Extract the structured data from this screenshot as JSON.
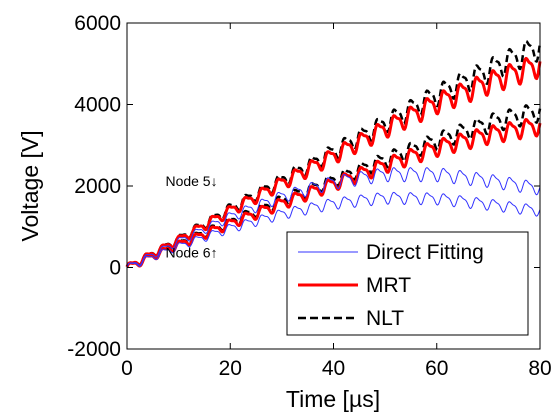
{
  "chart_data": {
    "type": "line",
    "title": "",
    "xlabel": "Time [µs]",
    "ylabel": "Voltage [V]",
    "xlim": [
      0,
      80
    ],
    "ylim": [
      -2000,
      6000
    ],
    "xticks": [
      0,
      20,
      40,
      60,
      80
    ],
    "yticks": [
      -2000,
      0,
      2000,
      4000,
      6000
    ],
    "xtick_labels": [
      "0",
      "20",
      "40",
      "60",
      "80"
    ],
    "ytick_labels": [
      "-2000",
      "0",
      "2000",
      "4000",
      "6000"
    ],
    "grid": false,
    "legend_position": "bottom-right",
    "legend": [
      {
        "label": "Direct Fitting",
        "color": "#3333ff",
        "style": "solid"
      },
      {
        "label": "MRT",
        "color": "#ff0000",
        "style": "solid"
      },
      {
        "label": "NLT",
        "color": "#000000",
        "style": "dashed"
      }
    ],
    "annotations": [
      {
        "text": "Node 5↓",
        "x": 12.5,
        "y": 2000
      },
      {
        "text": "Node 6↑",
        "x": 12.5,
        "y": 250
      }
    ],
    "series": [
      {
        "legend": "NLT",
        "node": "5",
        "color": "#000000",
        "style": "dashed",
        "width": 2.5,
        "x": [
          0,
          10,
          20,
          30,
          40,
          50,
          60,
          70,
          80
        ],
        "y": [
          0,
          700,
          1450,
          2150,
          2850,
          3550,
          4250,
          4850,
          5450
        ]
      },
      {
        "legend": "MRT",
        "node": "5",
        "color": "#ff0000",
        "style": "solid",
        "width": 3,
        "x": [
          0,
          10,
          20,
          30,
          40,
          50,
          60,
          70,
          80
        ],
        "y": [
          0,
          680,
          1400,
          2080,
          2750,
          3420,
          4050,
          4550,
          5000
        ]
      },
      {
        "legend": "NLT",
        "node": "6",
        "color": "#000000",
        "style": "dashed",
        "width": 2.5,
        "x": [
          0,
          10,
          20,
          30,
          40,
          50,
          60,
          70,
          80
        ],
        "y": [
          0,
          580,
          1120,
          1650,
          2150,
          2650,
          3120,
          3550,
          3850
        ]
      },
      {
        "legend": "MRT",
        "node": "6",
        "color": "#ff0000",
        "style": "solid",
        "width": 3,
        "x": [
          0,
          10,
          20,
          30,
          40,
          50,
          60,
          70,
          80
        ],
        "y": [
          0,
          560,
          1080,
          1580,
          2060,
          2520,
          2950,
          3270,
          3500
        ]
      },
      {
        "legend": "Direct Fitting",
        "node": "5",
        "color": "#3333ff",
        "style": "solid",
        "width": 1,
        "x": [
          0,
          10,
          20,
          30,
          40,
          50,
          60,
          70,
          80
        ],
        "y": [
          0,
          640,
          1250,
          1750,
          2100,
          2300,
          2300,
          2150,
          1950
        ]
      },
      {
        "legend": "Direct Fitting",
        "node": "6",
        "color": "#3333ff",
        "style": "solid",
        "width": 1,
        "x": [
          0,
          10,
          20,
          30,
          40,
          50,
          60,
          70,
          80
        ],
        "y": [
          0,
          520,
          970,
          1320,
          1580,
          1720,
          1700,
          1560,
          1400
        ]
      }
    ]
  }
}
